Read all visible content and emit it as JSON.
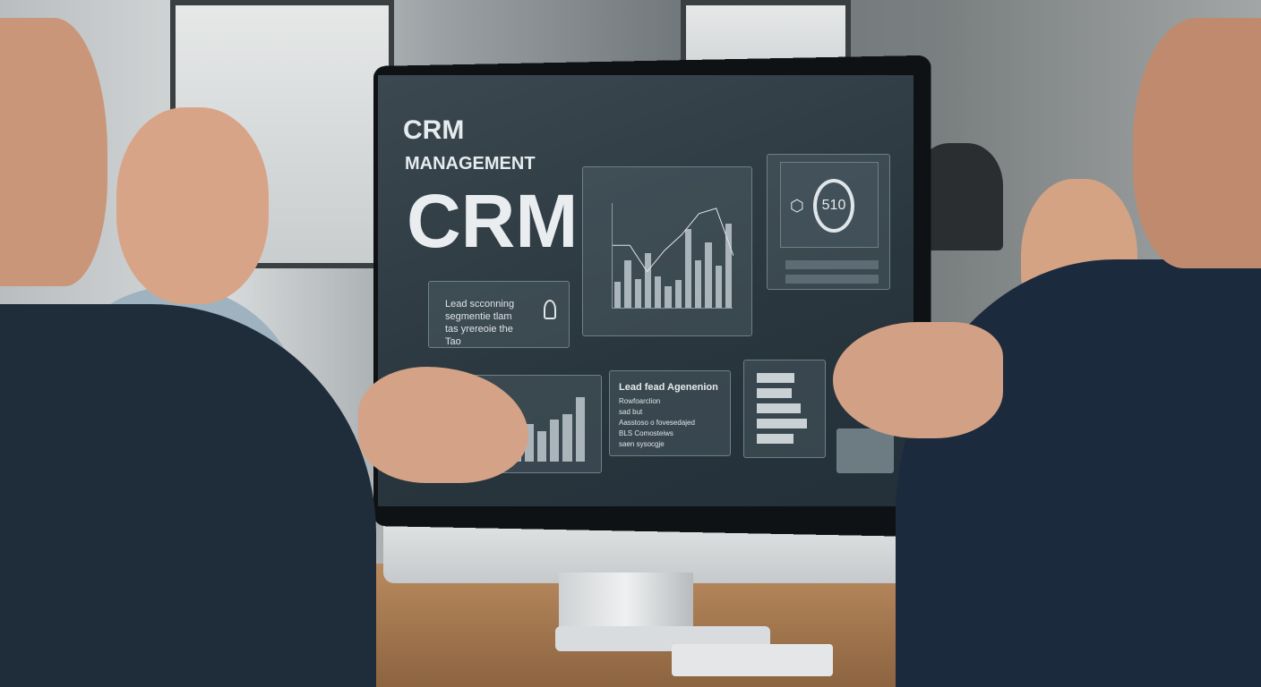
{
  "screen": {
    "title_small": "CRM",
    "subtitle": "MANAGEMENT",
    "title_large": "CRM",
    "lead_card": {
      "lines": [
        "Lead scconning",
        "segmentie tlam",
        "tas yrereoie the",
        "Tao"
      ]
    },
    "chart_panel": {
      "bars": [
        0.25,
        0.45,
        0.27,
        0.52,
        0.3,
        0.2,
        0.26,
        0.75,
        0.45,
        0.62,
        0.4,
        0.8
      ],
      "line": [
        0.6,
        0.6,
        0.35,
        0.55,
        0.7,
        0.9,
        0.95,
        0.5
      ]
    },
    "gauge": {
      "value": "510"
    },
    "agenda_card": {
      "title": "Lead fead Agenenion",
      "lines": [
        "Rowfoarclion",
        "sad but",
        "Aasstoso o fovesedajed",
        "BLS Comosteiws",
        "saen sysocgje"
      ]
    },
    "growth_chart": {
      "bars": [
        0.2,
        0.45,
        0.55,
        0.45,
        0.62,
        0.7,
        0.95
      ]
    },
    "hbar_panel": {
      "values": [
        0.6,
        0.55,
        0.7,
        0.8,
        0.58
      ]
    }
  },
  "colors": {
    "screen_bg": "#2f3c44",
    "panel_border": "#6f7f88",
    "text": "#e6ebee"
  }
}
